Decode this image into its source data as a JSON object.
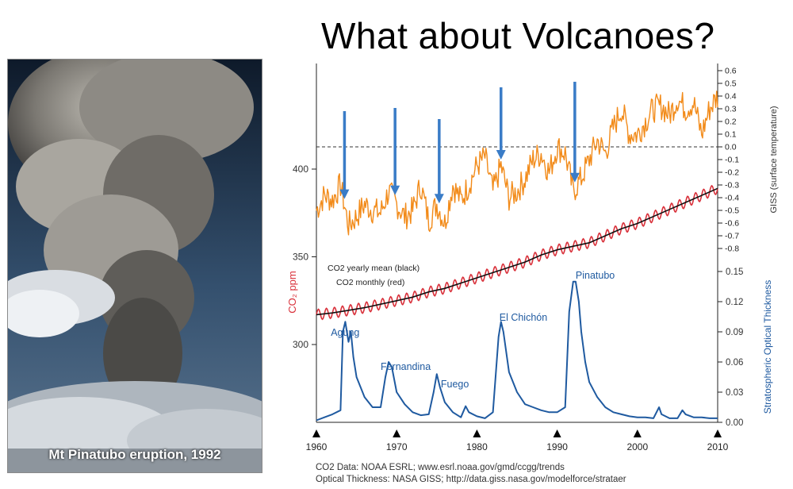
{
  "slide": {
    "title": "What about Volcanoes?",
    "photo_caption": "Mt Pinatubo eruption, 1992"
  },
  "credits": [
    "CO2 Data: NOAA ESRL; www.esrl.noaa.gov/gmd/ccgg/trends",
    "Optical Thickness: NASA GISS; http://data.giss.nasa.gov/modelforce/strataer"
  ],
  "colors": {
    "temperature": "#f28b1a",
    "co2_monthly": "#d9313b",
    "co2_yearly": "#111111",
    "optical": "#1f5aa0",
    "co2_axis": "#d9313b",
    "optical_axis": "#1f5aa0"
  },
  "chart_data": {
    "type": "line",
    "xlim": [
      1960,
      2010
    ],
    "x_ticks": [
      "1960",
      "1970",
      "1980",
      "1990",
      "2000",
      "2010"
    ],
    "eruption_markers_x": [
      1960,
      1970,
      1980,
      1990,
      2000,
      2010
    ],
    "volcano_arrows_x": [
      1963.5,
      1969.8,
      1975.3,
      1983.0,
      1992.2
    ],
    "axes": {
      "co2": {
        "label": "CO₂ ppm",
        "ticks": [
          "300",
          "350",
          "400"
        ],
        "ylim": [
          257,
          418
        ]
      },
      "temperature": {
        "label": "GISS (surface temperature)",
        "ylim": [
          -0.8,
          0.6
        ],
        "ticks": [
          "0.6",
          "0.5",
          "0.4",
          "0.3",
          "0.2",
          "0.1",
          "0.0",
          "-0.1",
          "-0.2",
          "-0.3",
          "-0.4",
          "-0.5",
          "-0.6",
          "-0.7",
          "-0.8"
        ]
      },
      "optical": {
        "label": "Stratospheric Optical Thickness",
        "ylim": [
          0,
          0.15
        ],
        "ticks": [
          "0.00",
          "0.03",
          "0.06",
          "0.09",
          "0.12",
          "0.15"
        ]
      }
    },
    "legend_text": [
      "CO2 yearly mean (black)",
      "CO2 monthly (red)"
    ],
    "series": [
      {
        "name": "CO2 yearly mean (black)",
        "axis": "co2",
        "x": [
          1960,
          1962,
          1964,
          1966,
          1968,
          1970,
          1972,
          1974,
          1976,
          1978,
          1980,
          1982,
          1984,
          1986,
          1988,
          1990,
          1992,
          1994,
          1996,
          1998,
          2000,
          2002,
          2004,
          2006,
          2008,
          2010
        ],
        "values": [
          317,
          318,
          319.5,
          321,
          323,
          325,
          327,
          330,
          332,
          335,
          338,
          341,
          344,
          347,
          351,
          354,
          356,
          358,
          362,
          366,
          369,
          373,
          377,
          381,
          385,
          389
        ],
        "seasonal_amplitude_ppm": 3
      },
      {
        "name": "CO2 monthly (red)",
        "axis": "co2",
        "seasonal_amplitude_ppm": 3
      },
      {
        "name": "GISS surface temperature",
        "axis": "temperature",
        "x": [
          1960,
          1961,
          1962,
          1963,
          1964,
          1965,
          1966,
          1967,
          1968,
          1969,
          1970,
          1971,
          1972,
          1973,
          1974,
          1975,
          1976,
          1977,
          1978,
          1979,
          1980,
          1981,
          1982,
          1983,
          1984,
          1985,
          1986,
          1987,
          1988,
          1989,
          1990,
          1991,
          1992,
          1993,
          1994,
          1995,
          1996,
          1997,
          1998,
          1999,
          2000,
          2001,
          2002,
          2003,
          2004,
          2005,
          2006,
          2007,
          2008,
          2009,
          2010
        ],
        "values": [
          -0.5,
          -0.38,
          -0.42,
          -0.3,
          -0.62,
          -0.55,
          -0.45,
          -0.5,
          -0.52,
          -0.35,
          -0.45,
          -0.55,
          -0.5,
          -0.3,
          -0.58,
          -0.45,
          -0.6,
          -0.3,
          -0.42,
          -0.3,
          -0.15,
          -0.08,
          -0.35,
          -0.15,
          -0.4,
          -0.35,
          -0.25,
          -0.1,
          -0.05,
          -0.2,
          0.0,
          -0.05,
          -0.35,
          -0.25,
          -0.1,
          0.05,
          -0.05,
          0.15,
          0.3,
          0.1,
          0.1,
          0.2,
          0.3,
          0.32,
          0.25,
          0.38,
          0.3,
          0.35,
          0.1,
          0.3,
          0.4
        ]
      },
      {
        "name": "Stratospheric Optical Thickness",
        "axis": "optical",
        "x": [
          1960,
          1961,
          1962,
          1963,
          1963.3,
          1963.6,
          1964,
          1964.3,
          1964.6,
          1965,
          1966,
          1967,
          1968,
          1968.6,
          1969,
          1969.4,
          1970,
          1971,
          1972,
          1973,
          1974,
          1974.6,
          1975,
          1975.4,
          1976,
          1977,
          1978,
          1978.6,
          1979,
          1980,
          1981,
          1982,
          1982.7,
          1983,
          1983.3,
          1984,
          1985,
          1986,
          1987,
          1988,
          1989,
          1990,
          1991,
          1991.5,
          1992,
          1992.3,
          1992.7,
          1993,
          1993.5,
          1994,
          1995,
          1996,
          1997,
          1998,
          1999,
          2000,
          2001,
          2002,
          2002.7,
          2003,
          2004,
          2005,
          2005.6,
          2006,
          2007,
          2008,
          2009,
          2010
        ],
        "values": [
          0.002,
          0.005,
          0.008,
          0.012,
          0.09,
          0.1,
          0.08,
          0.09,
          0.065,
          0.045,
          0.025,
          0.015,
          0.015,
          0.045,
          0.06,
          0.055,
          0.03,
          0.018,
          0.01,
          0.007,
          0.008,
          0.03,
          0.048,
          0.035,
          0.02,
          0.01,
          0.005,
          0.016,
          0.01,
          0.006,
          0.004,
          0.01,
          0.085,
          0.1,
          0.09,
          0.05,
          0.03,
          0.018,
          0.015,
          0.012,
          0.01,
          0.01,
          0.015,
          0.11,
          0.14,
          0.14,
          0.12,
          0.09,
          0.06,
          0.04,
          0.025,
          0.015,
          0.01,
          0.008,
          0.006,
          0.005,
          0.005,
          0.004,
          0.015,
          0.008,
          0.004,
          0.004,
          0.012,
          0.008,
          0.005,
          0.005,
          0.004,
          0.004
        ]
      }
    ],
    "annotations": [
      {
        "text": "Agung",
        "x": 1963.3
      },
      {
        "text": "Fernandina",
        "x": 1968.5
      },
      {
        "text": "Fuego",
        "x": 1975.0
      },
      {
        "text": "El Chichón",
        "x": 1982.8
      },
      {
        "text": "Pinatubo",
        "x": 1992.0
      }
    ]
  }
}
